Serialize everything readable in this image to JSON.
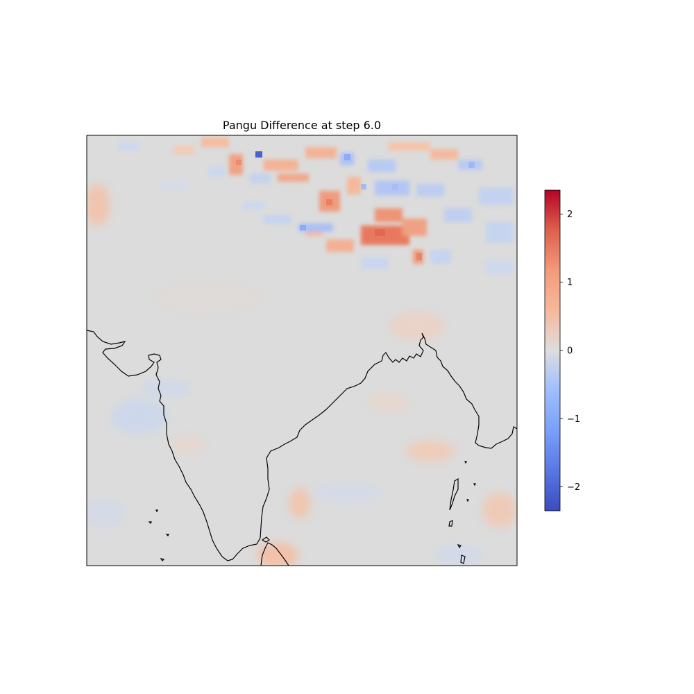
{
  "figure": {
    "title": "Pangu Difference at step 6.0"
  },
  "colorbar": {
    "colormap": "coolwarm",
    "vmin": -2.35,
    "vmax": 2.35,
    "ticks": [
      {
        "value": 2,
        "label": "2"
      },
      {
        "value": 1,
        "label": "1"
      },
      {
        "value": 0,
        "label": "0"
      },
      {
        "value": -1,
        "label": "−1"
      },
      {
        "value": -2,
        "label": "−2"
      }
    ]
  },
  "chart_data": {
    "type": "heatmap",
    "title": "Pangu Difference at step 6.0",
    "xlabel": "",
    "ylabel": "",
    "colorbar_range": [
      -2.35,
      2.35
    ],
    "colorbar_ticks": [
      -2,
      -1,
      0,
      1,
      2
    ],
    "grid": false,
    "legend": "colorbar right",
    "description_of_field": "mostly near-zero values; strong positive and negative variability in the top (Himalaya/Tibet) region, with max values near +1.8 and min near -2.3"
  }
}
